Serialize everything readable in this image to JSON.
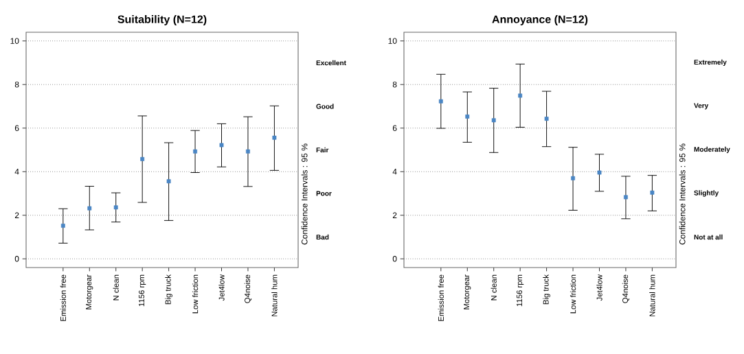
{
  "chart_data": [
    {
      "type": "scatter",
      "title": "Suitability (N=12)",
      "y2label": "Confidence Intervals : 95  %",
      "categories": [
        "Emission free",
        "Motorgear",
        "N clean",
        "1156 rpm",
        "Big truck",
        "Low friction",
        "Jet4low",
        "Q4noise",
        "Natural hum"
      ],
      "series": [
        {
          "color": "#4a86c5",
          "values": [
            1.52,
            2.32,
            2.36,
            4.58,
            3.56,
            4.93,
            5.22,
            4.93,
            5.56
          ],
          "errors": [
            [
              0.72,
              2.3
            ],
            [
              1.33,
              3.33
            ],
            [
              1.69,
              3.03
            ],
            [
              2.59,
              6.56
            ],
            [
              1.76,
              5.33
            ],
            [
              3.96,
              5.89
            ],
            [
              4.22,
              6.2
            ],
            [
              3.32,
              6.52
            ],
            [
              4.06,
              7.02
            ]
          ]
        }
      ],
      "ylim": [
        -0.4,
        10.4
      ],
      "yticks": [
        0,
        2,
        4,
        6,
        8,
        10
      ],
      "annotations": [
        "Excellent",
        "Good",
        "Fair",
        "Poor",
        "Bad"
      ],
      "grid": "y",
      "marker": "square"
    },
    {
      "type": "scatter",
      "title": "Annoyance (N=12)",
      "y2label": "Confidence Intervals : 95  %",
      "categories": [
        "Emission free",
        "Motorgear",
        "N clean",
        "1156 rpm",
        "Big truck",
        "Low friction",
        "Jet4low",
        "Q4noise",
        "Natural hum"
      ],
      "series": [
        {
          "color": "#4a86c5",
          "values": [
            7.23,
            6.53,
            6.36,
            7.49,
            6.43,
            3.7,
            3.96,
            2.83,
            3.04
          ],
          "errors": [
            [
              5.99,
              8.47
            ],
            [
              5.35,
              7.66
            ],
            [
              4.88,
              7.83
            ],
            [
              6.04,
              8.94
            ],
            [
              5.15,
              7.69
            ],
            [
              2.23,
              5.12
            ],
            [
              3.1,
              4.8
            ],
            [
              1.84,
              3.79
            ],
            [
              2.2,
              3.83
            ]
          ]
        }
      ],
      "ylim": [
        -0.4,
        10.4
      ],
      "yticks": [
        0,
        2,
        4,
        6,
        8,
        10
      ],
      "annotations": [
        "Extremely",
        "Very",
        "Moderately",
        "Slightly",
        "Not at all"
      ],
      "grid": "y",
      "marker": "square"
    }
  ]
}
